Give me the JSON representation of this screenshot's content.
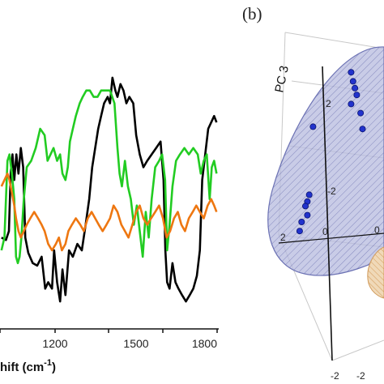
{
  "chart_data": [
    {
      "type": "line",
      "xlabel_visible": "hift (cm",
      "xlabel_superscript": "-1",
      "xlabel_close": ")",
      "x_ticks": [
        "1200",
        "1500",
        "1800"
      ],
      "xlim_visible": [
        1070,
        1800
      ],
      "grid": false,
      "series": [
        {
          "color": "#000000",
          "points": [
            [
              1075,
              -0.1
            ],
            [
              1090,
              -0.12
            ],
            [
              1100,
              -0.05
            ],
            [
              1106,
              0.4
            ],
            [
              1112,
              0.55
            ],
            [
              1118,
              0.35
            ],
            [
              1125,
              0.55
            ],
            [
              1132,
              0.4
            ],
            [
              1140,
              0.6
            ],
            [
              1148,
              0.45
            ],
            [
              1155,
              -0.1
            ],
            [
              1165,
              -0.22
            ],
            [
              1180,
              -0.3
            ],
            [
              1195,
              -0.32
            ],
            [
              1210,
              -0.25
            ],
            [
              1222,
              -0.5
            ],
            [
              1232,
              -0.45
            ],
            [
              1245,
              -0.5
            ],
            [
              1252,
              -0.2
            ],
            [
              1262,
              -0.45
            ],
            [
              1272,
              -0.6
            ],
            [
              1280,
              -0.35
            ],
            [
              1290,
              -0.55
            ],
            [
              1302,
              -0.2
            ],
            [
              1315,
              -0.25
            ],
            [
              1330,
              -0.15
            ],
            [
              1345,
              -0.2
            ],
            [
              1358,
              0.0
            ],
            [
              1370,
              0.2
            ],
            [
              1380,
              0.45
            ],
            [
              1390,
              0.6
            ],
            [
              1400,
              0.75
            ],
            [
              1410,
              0.85
            ],
            [
              1420,
              0.95
            ],
            [
              1432,
              1.0
            ],
            [
              1440,
              0.95
            ],
            [
              1448,
              1.15
            ],
            [
              1458,
              1.05
            ],
            [
              1465,
              1.0
            ],
            [
              1475,
              1.1
            ],
            [
              1485,
              1.05
            ],
            [
              1495,
              0.95
            ],
            [
              1505,
              1.0
            ],
            [
              1518,
              0.95
            ],
            [
              1528,
              0.7
            ],
            [
              1540,
              0.55
            ],
            [
              1552,
              0.45
            ],
            [
              1565,
              0.5
            ],
            [
              1580,
              0.55
            ],
            [
              1595,
              0.6
            ],
            [
              1610,
              0.65
            ],
            [
              1620,
              0.35
            ],
            [
              1626,
              -0.2
            ],
            [
              1632,
              -0.45
            ],
            [
              1640,
              -0.5
            ],
            [
              1650,
              -0.3
            ],
            [
              1660,
              -0.45
            ],
            [
              1670,
              -0.5
            ],
            [
              1682,
              -0.55
            ],
            [
              1695,
              -0.6
            ],
            [
              1708,
              -0.55
            ],
            [
              1720,
              -0.5
            ],
            [
              1732,
              -0.4
            ],
            [
              1742,
              -0.2
            ],
            [
              1750,
              0.35
            ],
            [
              1760,
              0.55
            ],
            [
              1770,
              0.75
            ],
            [
              1780,
              0.8
            ],
            [
              1790,
              0.85
            ],
            [
              1798,
              0.8
            ]
          ]
        },
        {
          "color": "#22cc22",
          "points": [
            [
              1075,
              -0.2
            ],
            [
              1085,
              -0.1
            ],
            [
              1095,
              0.5
            ],
            [
              1102,
              0.55
            ],
            [
              1110,
              0.4
            ],
            [
              1118,
              0.2
            ],
            [
              1124,
              -0.25
            ],
            [
              1130,
              -0.3
            ],
            [
              1136,
              -0.25
            ],
            [
              1142,
              -0.1
            ],
            [
              1150,
              0.2
            ],
            [
              1160,
              0.45
            ],
            [
              1175,
              0.5
            ],
            [
              1190,
              0.6
            ],
            [
              1205,
              0.75
            ],
            [
              1220,
              0.7
            ],
            [
              1230,
              0.5
            ],
            [
              1240,
              0.55
            ],
            [
              1250,
              0.6
            ],
            [
              1262,
              0.5
            ],
            [
              1272,
              0.55
            ],
            [
              1280,
              0.4
            ],
            [
              1290,
              0.35
            ],
            [
              1298,
              0.45
            ],
            [
              1305,
              0.65
            ],
            [
              1315,
              0.75
            ],
            [
              1325,
              0.85
            ],
            [
              1338,
              0.95
            ],
            [
              1348,
              1.0
            ],
            [
              1360,
              1.05
            ],
            [
              1372,
              1.05
            ],
            [
              1385,
              1.0
            ],
            [
              1398,
              1.0
            ],
            [
              1410,
              1.05
            ],
            [
              1425,
              1.05
            ],
            [
              1440,
              1.05
            ],
            [
              1455,
              0.95
            ],
            [
              1465,
              0.6
            ],
            [
              1472,
              0.4
            ],
            [
              1480,
              0.3
            ],
            [
              1490,
              0.5
            ],
            [
              1500,
              0.3
            ],
            [
              1510,
              0.2
            ],
            [
              1520,
              0.0
            ],
            [
              1530,
              0.15
            ],
            [
              1540,
              -0.05
            ],
            [
              1550,
              -0.25
            ],
            [
              1560,
              0.1
            ],
            [
              1570,
              -0.1
            ],
            [
              1580,
              0.2
            ],
            [
              1592,
              0.45
            ],
            [
              1605,
              0.5
            ],
            [
              1615,
              0.55
            ],
            [
              1625,
              0.35
            ],
            [
              1632,
              -0.2
            ],
            [
              1640,
              0.0
            ],
            [
              1650,
              0.3
            ],
            [
              1662,
              0.5
            ],
            [
              1675,
              0.55
            ],
            [
              1690,
              0.6
            ],
            [
              1705,
              0.55
            ],
            [
              1720,
              0.6
            ],
            [
              1735,
              0.55
            ],
            [
              1745,
              0.4
            ],
            [
              1755,
              0.5
            ],
            [
              1765,
              0.55
            ],
            [
              1775,
              0.2
            ],
            [
              1782,
              0.45
            ],
            [
              1790,
              0.5
            ],
            [
              1798,
              0.4
            ]
          ]
        },
        {
          "color": "#ee7711",
          "points": [
            [
              1075,
              0.3
            ],
            [
              1085,
              0.35
            ],
            [
              1095,
              0.4
            ],
            [
              1102,
              0.35
            ],
            [
              1110,
              0.25
            ],
            [
              1118,
              0.15
            ],
            [
              1124,
              0.05
            ],
            [
              1132,
              -0.05
            ],
            [
              1140,
              -0.1
            ],
            [
              1150,
              -0.05
            ],
            [
              1160,
              0.0
            ],
            [
              1172,
              0.05
            ],
            [
              1185,
              0.1
            ],
            [
              1198,
              0.05
            ],
            [
              1210,
              0.0
            ],
            [
              1220,
              -0.05
            ],
            [
              1232,
              -0.15
            ],
            [
              1245,
              -0.2
            ],
            [
              1258,
              -0.15
            ],
            [
              1268,
              -0.1
            ],
            [
              1278,
              -0.2
            ],
            [
              1290,
              -0.15
            ],
            [
              1300,
              -0.05
            ],
            [
              1312,
              0.0
            ],
            [
              1325,
              0.05
            ],
            [
              1340,
              0.0
            ],
            [
              1352,
              -0.05
            ],
            [
              1365,
              0.05
            ],
            [
              1378,
              0.1
            ],
            [
              1390,
              0.05
            ],
            [
              1402,
              0.0
            ],
            [
              1415,
              -0.05
            ],
            [
              1428,
              0.0
            ],
            [
              1440,
              0.05
            ],
            [
              1452,
              0.15
            ],
            [
              1465,
              0.1
            ],
            [
              1478,
              0.0
            ],
            [
              1490,
              -0.05
            ],
            [
              1502,
              -0.1
            ],
            [
              1515,
              0.0
            ],
            [
              1528,
              0.1
            ],
            [
              1540,
              0.15
            ],
            [
              1552,
              0.05
            ],
            [
              1565,
              0.0
            ],
            [
              1578,
              0.05
            ],
            [
              1592,
              0.1
            ],
            [
              1605,
              0.15
            ],
            [
              1618,
              0.05
            ],
            [
              1630,
              -0.1
            ],
            [
              1642,
              -0.05
            ],
            [
              1655,
              0.05
            ],
            [
              1668,
              0.1
            ],
            [
              1680,
              0.0
            ],
            [
              1692,
              -0.05
            ],
            [
              1705,
              0.05
            ],
            [
              1718,
              0.1
            ],
            [
              1730,
              0.15
            ],
            [
              1742,
              0.1
            ],
            [
              1755,
              0.05
            ],
            [
              1768,
              0.15
            ],
            [
              1780,
              0.2
            ],
            [
              1790,
              0.15
            ],
            [
              1798,
              0.1
            ]
          ]
        }
      ]
    },
    {
      "type": "scatter",
      "panel_label": "(b)",
      "axis_label": "PC 3",
      "axis_ticks": [
        "2",
        "-2",
        "2",
        "0",
        "0",
        "-2",
        "-2"
      ],
      "series": [
        {
          "color": "#2233cc",
          "points": [
            [
              2.2,
              1.8
            ],
            [
              2.25,
              1.6
            ],
            [
              2.3,
              1.45
            ],
            [
              2.35,
              1.3
            ],
            [
              2.2,
              1.1
            ],
            [
              2.45,
              0.9
            ],
            [
              2.5,
              0.55
            ],
            [
              1.2,
              0.6
            ],
            [
              1.1,
              -0.9
            ],
            [
              1.05,
              -1.05
            ],
            [
              1.0,
              -1.15
            ],
            [
              1.05,
              -1.35
            ],
            [
              0.9,
              -1.5
            ],
            [
              0.85,
              -1.7
            ]
          ]
        }
      ],
      "group_colors": [
        "#8a90c8",
        "#e0a050"
      ]
    }
  ]
}
